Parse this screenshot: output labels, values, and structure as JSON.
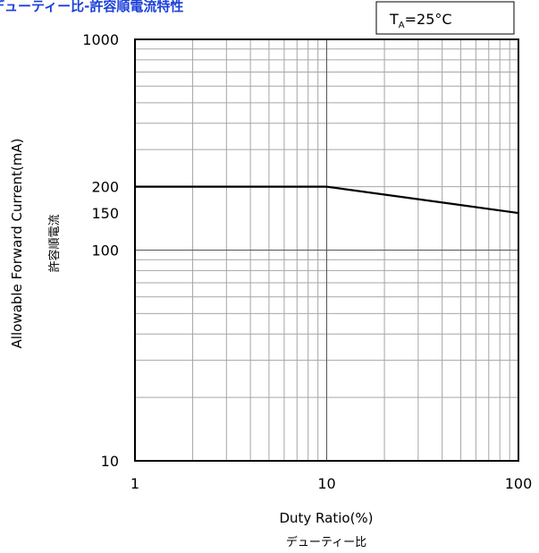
{
  "page": {
    "title": "デューティー比-許容順電流特性"
  },
  "condition": {
    "prefix": "T",
    "subscript": "A",
    "value": "=25°C"
  },
  "colors": {
    "title": "#1a3fd9",
    "grid": "#a6a6a6",
    "frame": "#000000",
    "series": "#000000"
  },
  "chart_data": {
    "type": "line",
    "xlabel": "Duty Ratio(%)",
    "xlabel_sub": "デューティー比",
    "ylabel": "Allowable Forward Current(mA)",
    "ylabel_sub": "許容順電流",
    "xscale": "log",
    "yscale": "log",
    "xlim": [
      1,
      100
    ],
    "ylim": [
      10,
      1000
    ],
    "grid": true,
    "x_ticks": [
      {
        "value": 1,
        "label": "1"
      },
      {
        "value": 10,
        "label": "10"
      },
      {
        "value": 100,
        "label": "100"
      }
    ],
    "y_ticks": [
      {
        "value": 10,
        "label": "10"
      },
      {
        "value": 100,
        "label": "100"
      },
      {
        "value": 150,
        "label": "150"
      },
      {
        "value": 200,
        "label": "200"
      },
      {
        "value": 1000,
        "label": "1000"
      }
    ],
    "series": [
      {
        "x": [
          1,
          10,
          100
        ],
        "y": [
          200,
          200,
          150
        ]
      }
    ]
  }
}
